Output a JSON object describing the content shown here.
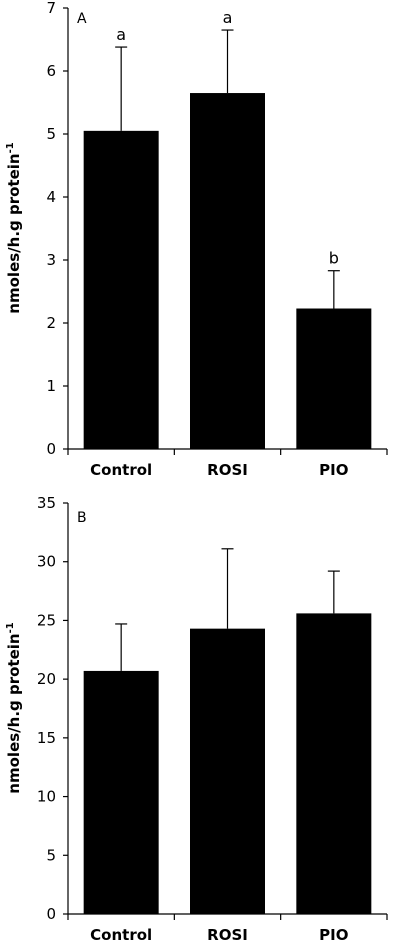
{
  "chart_data": [
    {
      "type": "bar",
      "panel_label": "A",
      "categories": [
        "Control",
        "ROSI",
        "PIO"
      ],
      "values": [
        5.05,
        5.65,
        2.23
      ],
      "error_upper": [
        6.38,
        6.65,
        2.83
      ],
      "significance": [
        "a",
        "a",
        "b"
      ],
      "ylabel": "nmoles/h.g protein",
      "ylabel_superscript": "-1",
      "ylim": [
        0,
        7
      ],
      "yticks": [
        "0",
        "1",
        "2",
        "3",
        "4",
        "5",
        "6",
        "7"
      ],
      "grid": false,
      "bar_color": "#000000"
    },
    {
      "type": "bar",
      "panel_label": "B",
      "categories": [
        "Control",
        "ROSI",
        "PIO"
      ],
      "values": [
        20.7,
        24.3,
        25.6
      ],
      "error_upper": [
        24.7,
        31.1,
        29.2
      ],
      "significance": [],
      "ylabel": "nmoles/h.g protein",
      "ylabel_superscript": "-1",
      "ylim": [
        0,
        35
      ],
      "yticks": [
        "0",
        "5",
        "10",
        "15",
        "20",
        "25",
        "30",
        "35"
      ],
      "grid": false,
      "bar_color": "#000000"
    }
  ]
}
